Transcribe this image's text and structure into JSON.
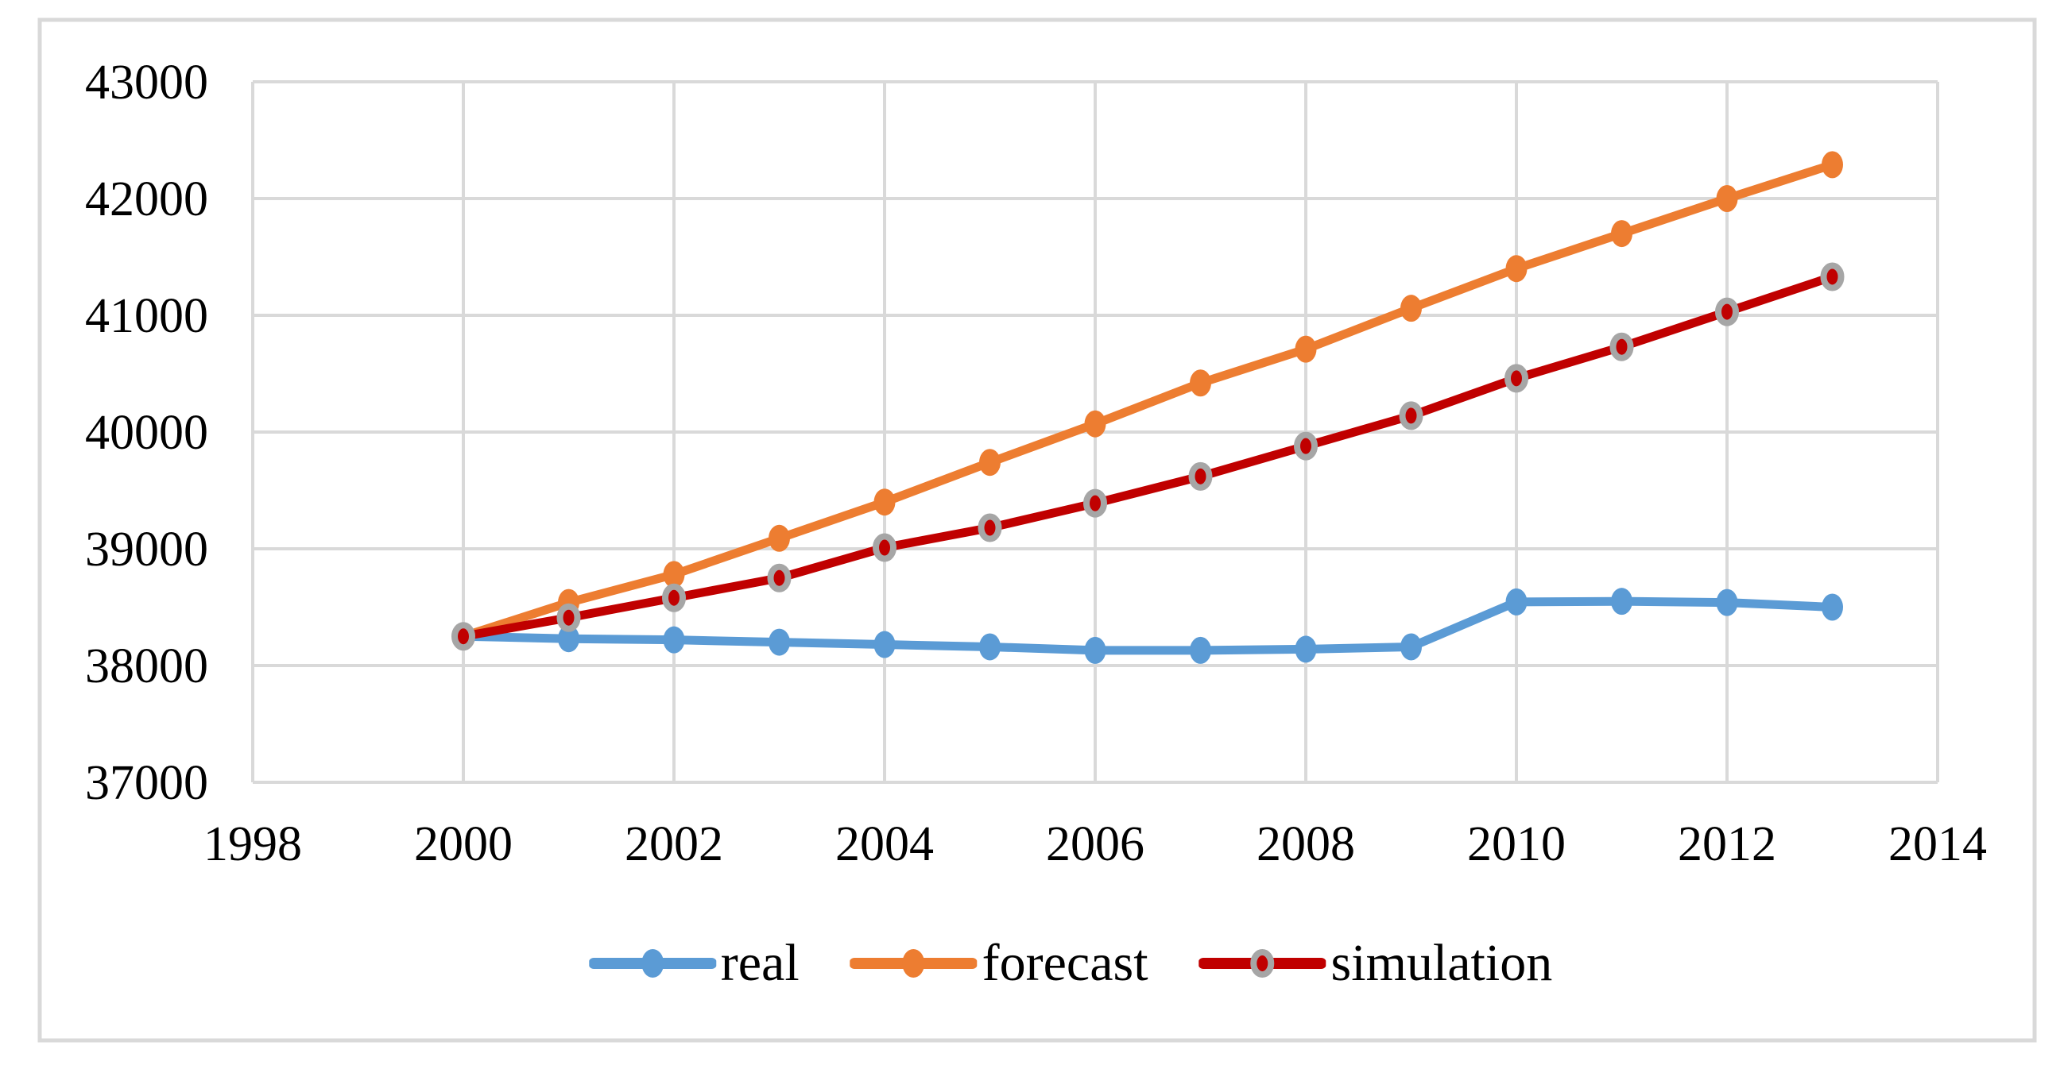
{
  "figure": {
    "background": "#ffffff",
    "frame_border_color": "#D9D9D9",
    "gridline_color": "#D9D9D9",
    "text_color": "#000000"
  },
  "chart_data": {
    "type": "line",
    "title": "",
    "xlabel": "",
    "ylabel": "",
    "xlim": [
      1998,
      2014
    ],
    "ylim": [
      37000,
      43000
    ],
    "grid": true,
    "legend_position": "bottom",
    "x_ticks": [
      "1998",
      "2000",
      "2002",
      "2004",
      "2006",
      "2008",
      "2010",
      "2012",
      "2014"
    ],
    "y_ticks": [
      "37000",
      "38000",
      "39000",
      "40000",
      "41000",
      "42000",
      "43000"
    ],
    "x": [
      2000,
      2001,
      2002,
      2003,
      2004,
      2005,
      2006,
      2007,
      2008,
      2009,
      2010,
      2011,
      2012,
      2013
    ],
    "series": [
      {
        "name": "real",
        "color": "#5B9BD5",
        "marker": "circle",
        "values": [
          38250,
          38230,
          38220,
          38200,
          38180,
          38160,
          38130,
          38130,
          38140,
          38160,
          38545,
          38550,
          38540,
          38500
        ]
      },
      {
        "name": "forecast",
        "color": "#ED7D31",
        "marker": "circle",
        "values": [
          38250,
          38540,
          38780,
          39090,
          39400,
          39740,
          40070,
          40420,
          40710,
          41060,
          41400,
          41700,
          42000,
          42290
        ]
      },
      {
        "name": "simulation",
        "color": "#C00000",
        "marker": "circle-ring",
        "ring_color": "#A6A6A6",
        "values": [
          38250,
          38410,
          38580,
          38750,
          39010,
          39180,
          39390,
          39620,
          39880,
          40140,
          40460,
          40730,
          41030,
          41330
        ]
      }
    ]
  }
}
